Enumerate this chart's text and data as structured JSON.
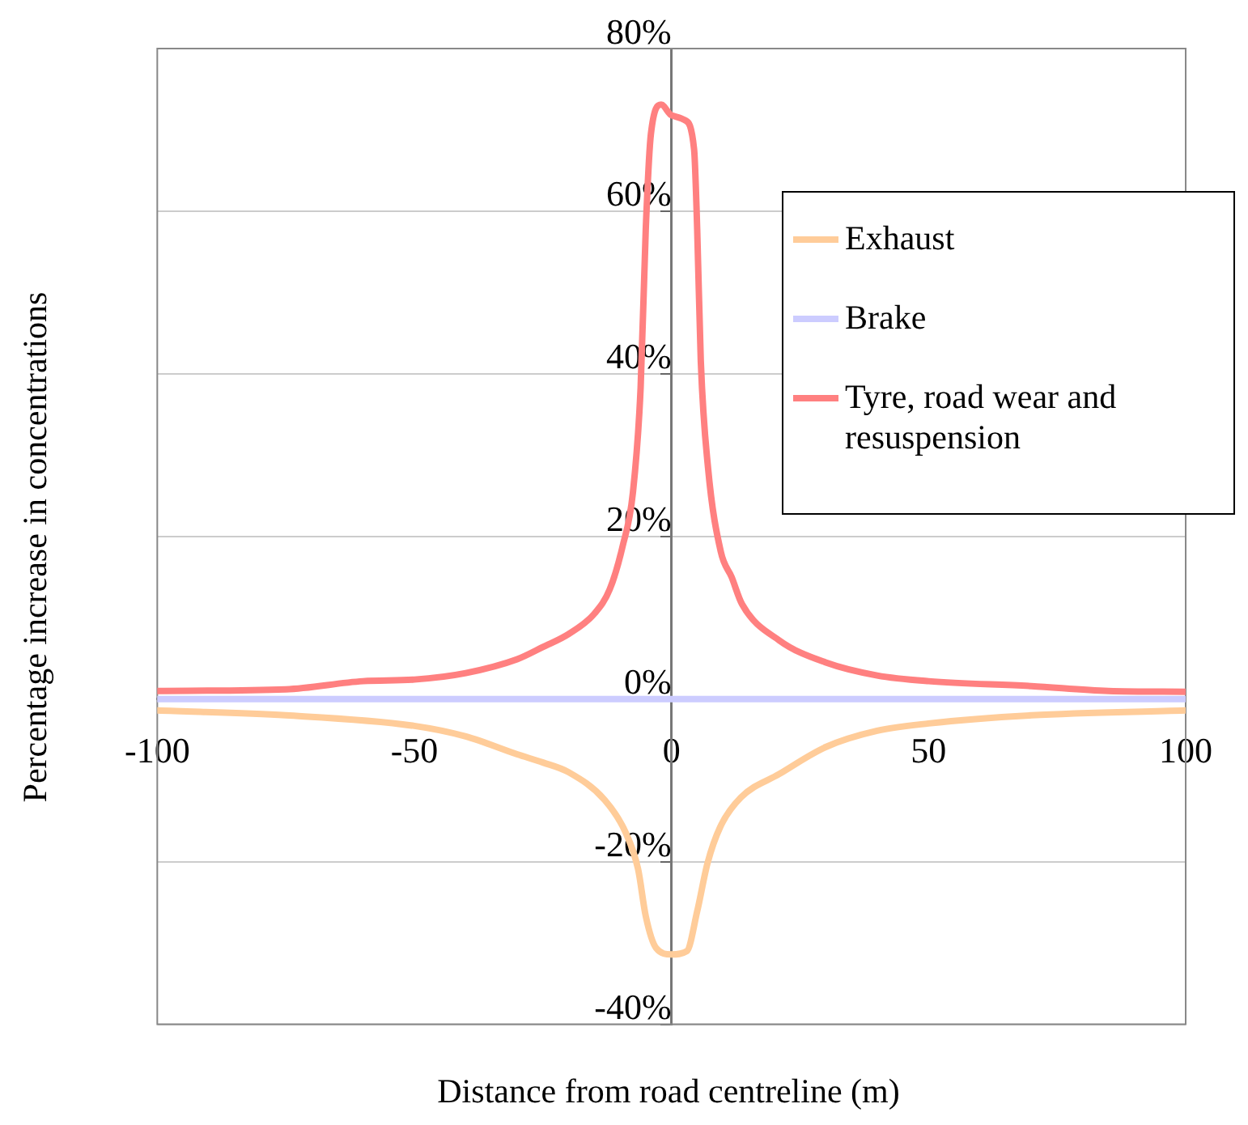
{
  "chart_data": {
    "type": "line",
    "xlabel": "Distance from road centreline (m)",
    "ylabel": "Percentage increase in concentrations",
    "xlim": [
      -100,
      100
    ],
    "xticks": [
      -100,
      -50,
      0,
      50,
      100
    ],
    "ylim": [
      -40,
      80
    ],
    "yticks": [
      {
        "value": -40,
        "label": "-40%"
      },
      {
        "value": -20,
        "label": "-20%"
      },
      {
        "value": 0,
        "label": "0%"
      },
      {
        "value": 20,
        "label": "20%"
      },
      {
        "value": 40,
        "label": "40%"
      },
      {
        "value": 60,
        "label": "60%"
      },
      {
        "value": 80,
        "label": "80%"
      }
    ],
    "grid": "y",
    "legend": "top right",
    "marker": "none",
    "line_style": "solid",
    "series": [
      {
        "name": "Exhaust",
        "color": "#ffcc99",
        "x": [
          -100,
          -75,
          -50,
          -40,
          -30,
          -25,
          -20,
          -13,
          -9,
          -6.5,
          -5,
          -3,
          0,
          3,
          5,
          7,
          9.5,
          13.5,
          21,
          30,
          40,
          50,
          70,
          100
        ],
        "values": [
          -1.4,
          -2,
          -3.3,
          -4.6,
          -6.8,
          -7.8,
          -9,
          -12.4,
          -16.3,
          -20.9,
          -26.7,
          -30.6,
          -31.4,
          -31,
          -26.1,
          -20.2,
          -15.7,
          -12.1,
          -9.2,
          -5.9,
          -3.9,
          -3,
          -2,
          -1.4
        ]
      },
      {
        "name": "Brake",
        "color": "#ccccff",
        "x": [
          -100,
          100
        ],
        "values": [
          0,
          0
        ]
      },
      {
        "name": "Tyre, road wear and resuspension",
        "color": "#ff8080",
        "x": [
          -100,
          -75,
          -60,
          -50,
          -40,
          -30,
          -25,
          -20,
          -15,
          -12,
          -9.5,
          -7.5,
          -6,
          -5,
          -4,
          -2,
          0,
          2.6,
          4.4,
          5,
          5.7,
          7.1,
          9.6,
          11.7,
          13.7,
          21,
          30,
          40,
          50,
          70,
          85,
          100
        ],
        "values": [
          1,
          1.2,
          2.2,
          2.4,
          3.2,
          4.9,
          6.4,
          8,
          10.5,
          13.5,
          18.8,
          25.4,
          38.3,
          57.8,
          69.5,
          73.1,
          71.8,
          71.2,
          67.6,
          57.8,
          41.6,
          28.5,
          18.1,
          15,
          11.7,
          7.2,
          4.5,
          2.9,
          2.2,
          1.6,
          1,
          0.9
        ]
      }
    ]
  }
}
